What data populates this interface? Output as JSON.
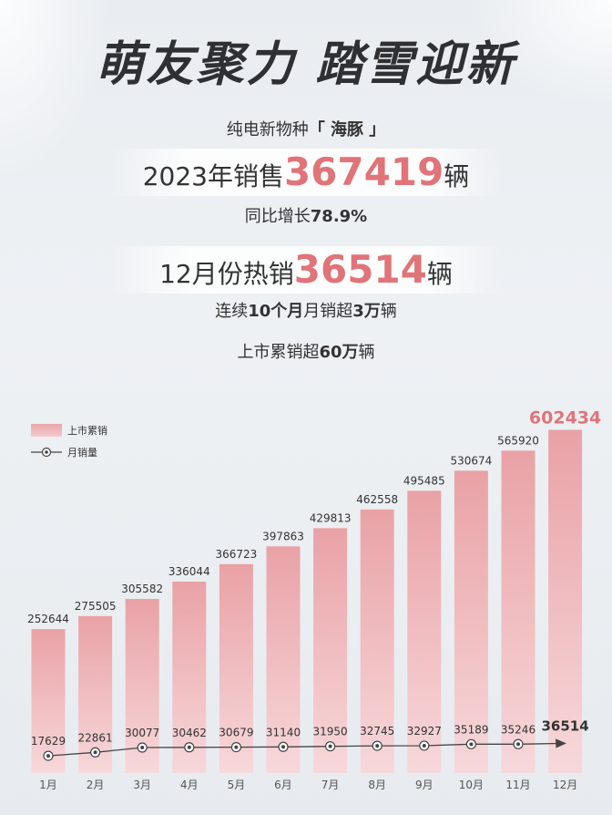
{
  "headline": "萌友聚力 踏雪迎新",
  "intro": {
    "prefix": "纯电新物种",
    "product": "「 海豚 」"
  },
  "annual": {
    "prefix": "2023年销售",
    "value": "367419",
    "unit": "辆"
  },
  "yoy": {
    "prefix": "同比增长",
    "value": "78.9%"
  },
  "december": {
    "prefix": "12月份热销",
    "value": "36514",
    "unit": "辆"
  },
  "streak": {
    "p1": "连续",
    "b1": "10个月",
    "p2": "月销超",
    "b2": "3万",
    "p3": "辆"
  },
  "cumulative_note": {
    "prefix": "上市累销超",
    "value": "60万",
    "unit": "辆"
  },
  "colors": {
    "accent": "#e07479",
    "bar_top": "#e9a2a6",
    "bar_bottom": "#f6d3d5",
    "line": "#444444"
  },
  "chart_data": {
    "type": "bar",
    "categories": [
      "1月",
      "2月",
      "3月",
      "4月",
      "5月",
      "6月",
      "7月",
      "8月",
      "9月",
      "10月",
      "11月",
      "12月"
    ],
    "series": [
      {
        "name": "上市累销",
        "type": "bar",
        "values": [
          252644,
          275505,
          305582,
          336044,
          366723,
          397863,
          429813,
          462558,
          495485,
          530674,
          565920,
          602434
        ]
      },
      {
        "name": "月销量",
        "type": "line",
        "values": [
          17629,
          22861,
          30077,
          30462,
          30679,
          31140,
          31950,
          32745,
          32927,
          35189,
          35246,
          36514
        ]
      }
    ],
    "legend_position": "top-left",
    "grid": false,
    "bar_ylim": [
      0,
      640000
    ]
  }
}
